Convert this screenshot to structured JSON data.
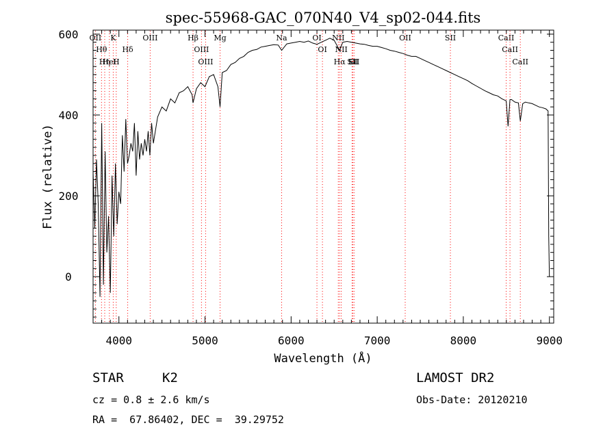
{
  "chart_data": {
    "type": "line",
    "title": "spec-55968-GAC_070N40_V4_sp02-044.fits",
    "xlabel": "Wavelength (Å)",
    "ylabel": "Flux (relative)",
    "xlim": [
      3700,
      9050
    ],
    "ylim": [
      -115,
      610
    ],
    "xticks": [
      4000,
      5000,
      6000,
      7000,
      8000,
      9000
    ],
    "yticks": [
      0,
      200,
      400,
      600
    ],
    "grid": false,
    "line_color": "#000000",
    "marker_color": "#ff0000",
    "series": [
      {
        "x": [
          3700,
          3720,
          3740,
          3760,
          3780,
          3800,
          3820,
          3840,
          3860,
          3880,
          3900,
          3920,
          3940,
          3960,
          3980,
          4000,
          4020,
          4040,
          4060,
          4080,
          4100,
          4120,
          4140,
          4160,
          4180,
          4200,
          4220,
          4240,
          4260,
          4280,
          4300,
          4320,
          4340,
          4360,
          4380,
          4400,
          4450,
          4500,
          4550,
          4600,
          4650,
          4700,
          4750,
          4800,
          4850,
          4861,
          4900,
          4950,
          5000,
          5050,
          5100,
          5150,
          5175,
          5200,
          5250,
          5300,
          5350,
          5400,
          5450,
          5500,
          5550,
          5600,
          5650,
          5700,
          5750,
          5800,
          5850,
          5890,
          5950,
          6000,
          6050,
          6100,
          6150,
          6200,
          6250,
          6300,
          6350,
          6400,
          6450,
          6500,
          6563,
          6600,
          6650,
          6700,
          6750,
          6800,
          6850,
          6900,
          6950,
          7000,
          7050,
          7100,
          7150,
          7200,
          7250,
          7300,
          7350,
          7400,
          7450,
          7500,
          7550,
          7600,
          7650,
          7700,
          7750,
          7800,
          7850,
          7900,
          7950,
          8000,
          8050,
          8100,
          8150,
          8200,
          8250,
          8300,
          8350,
          8400,
          8450,
          8498,
          8520,
          8542,
          8560,
          8600,
          8640,
          8662,
          8690,
          8720,
          8760,
          8800,
          8840,
          8880,
          8920,
          8960,
          8985,
          8992,
          9000
        ],
        "y": [
          260,
          120,
          290,
          180,
          -50,
          380,
          -20,
          310,
          60,
          150,
          -40,
          250,
          100,
          280,
          130,
          210,
          180,
          350,
          260,
          390,
          280,
          300,
          330,
          310,
          380,
          250,
          360,
          290,
          330,
          300,
          340,
          310,
          360,
          300,
          380,
          330,
          395,
          420,
          410,
          440,
          430,
          455,
          460,
          470,
          450,
          430,
          465,
          480,
          470,
          495,
          500,
          470,
          420,
          505,
          510,
          525,
          530,
          540,
          545,
          555,
          560,
          562,
          568,
          570,
          572,
          574,
          573,
          560,
          576,
          578,
          580,
          582,
          580,
          583,
          578,
          575,
          580,
          585,
          590,
          585,
          560,
          580,
          582,
          580,
          578,
          576,
          575,
          572,
          570,
          570,
          567,
          564,
          560,
          558,
          555,
          552,
          548,
          545,
          545,
          540,
          535,
          530,
          525,
          520,
          515,
          510,
          505,
          500,
          495,
          490,
          485,
          478,
          472,
          466,
          460,
          455,
          450,
          447,
          440,
          435,
          372,
          438,
          438,
          432,
          430,
          385,
          428,
          432,
          430,
          428,
          424,
          420,
          418,
          415,
          410,
          100,
          0
        ]
      }
    ],
    "line_markers": [
      {
        "label": "OII",
        "x": 3727
      },
      {
        "label": "Hθ",
        "x": 3798
      },
      {
        "label": "Hη",
        "x": 3835
      },
      {
        "label": "K",
        "x": 3934
      },
      {
        "label": "H",
        "x": 3969
      },
      {
        "label": "HeI",
        "x": 3889
      },
      {
        "label": "Hδ",
        "x": 4102
      },
      {
        "label": "OIII",
        "x": 4363
      },
      {
        "label": "Hβ",
        "x": 4861
      },
      {
        "label": "OIII",
        "x": 4959
      },
      {
        "label": "OIII",
        "x": 5007
      },
      {
        "label": "Mg",
        "x": 5175
      },
      {
        "label": "Na",
        "x": 5890
      },
      {
        "label": "OI",
        "x": 6300
      },
      {
        "label": "OI",
        "x": 6364
      },
      {
        "label": "NII",
        "x": 6548
      },
      {
        "label": "Hα",
        "x": 6563
      },
      {
        "label": "NII",
        "x": 6583
      },
      {
        "label": "Li",
        "x": 6708
      },
      {
        "label": "SII",
        "x": 6716
      },
      {
        "label": "SII",
        "x": 6731
      },
      {
        "label": "OII",
        "x": 7325
      },
      {
        "label": "SII",
        "x": 7850
      },
      {
        "label": "CaII",
        "x": 8498
      },
      {
        "label": "CaII",
        "x": 8542
      },
      {
        "label": "CaII",
        "x": 8662
      }
    ]
  },
  "info": {
    "object_class": "STAR",
    "subclass": "K2",
    "survey": "LAMOST DR2",
    "redshift": "cz = 0.8 ± 2.6 km/s",
    "obs_date": "Obs-Date: 20120210",
    "coords": "RA =  67.86402, DEC =  39.29752"
  }
}
